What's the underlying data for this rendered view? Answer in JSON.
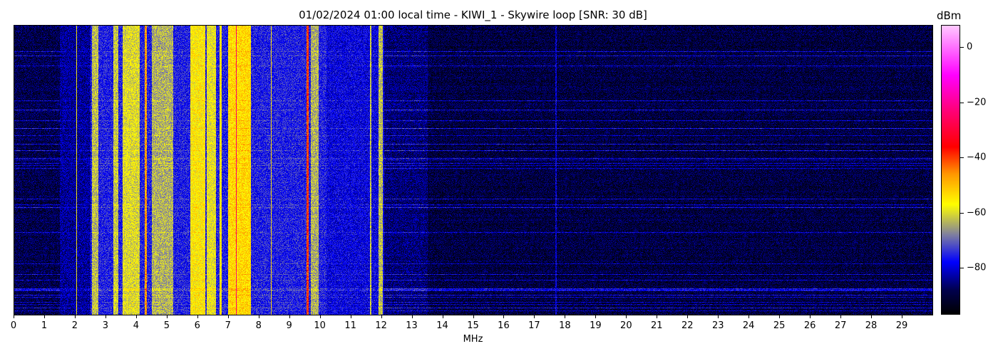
{
  "chart_data": {
    "type": "heatmap",
    "title": "01/02/2024 01:00 local time - KIWI_1 - Skywire loop [SNR: 30 dB]",
    "xlabel": "MHz",
    "ylabel": "",
    "xlim": [
      0,
      30
    ],
    "x_ticks": [
      0,
      1,
      2,
      3,
      4,
      5,
      6,
      7,
      8,
      9,
      10,
      11,
      12,
      13,
      14,
      15,
      16,
      17,
      18,
      19,
      20,
      21,
      22,
      23,
      24,
      25,
      26,
      27,
      28,
      29
    ],
    "colorbar": {
      "label": "dBm",
      "range": [
        -97,
        8
      ],
      "ticks": [
        0,
        -20,
        -40,
        -60,
        -80
      ],
      "colormap": [
        [
          -97,
          "#000000"
        ],
        [
          -88,
          "#000050"
        ],
        [
          -78,
          "#0000ff"
        ],
        [
          -68,
          "#8080a0"
        ],
        [
          -57,
          "#ffff00"
        ],
        [
          -46,
          "#ff9900"
        ],
        [
          -36,
          "#ff0000"
        ],
        [
          -22,
          "#ff0080"
        ],
        [
          -10,
          "#ff00ff"
        ],
        [
          8,
          "#ffc8ff"
        ]
      ]
    },
    "background_levels": [
      {
        "from": 0,
        "to": 1.5,
        "dbm": -89
      },
      {
        "from": 1.5,
        "to": 2.5,
        "dbm": -84
      },
      {
        "from": 2.5,
        "to": 10.2,
        "dbm": -76
      },
      {
        "from": 10.2,
        "to": 12.1,
        "dbm": -79
      },
      {
        "from": 12.1,
        "to": 13.5,
        "dbm": -86
      },
      {
        "from": 13.5,
        "to": 30,
        "dbm": -90
      }
    ],
    "signal_bands": [
      {
        "from": 2.03,
        "to": 2.07,
        "dbm": -58
      },
      {
        "from": 2.55,
        "to": 2.75,
        "dbm": -63
      },
      {
        "from": 3.25,
        "to": 3.4,
        "dbm": -62
      },
      {
        "from": 3.55,
        "to": 4.1,
        "dbm": -60
      },
      {
        "from": 4.28,
        "to": 4.35,
        "dbm": -47
      },
      {
        "from": 4.5,
        "to": 5.2,
        "dbm": -64
      },
      {
        "from": 5.75,
        "to": 6.25,
        "dbm": -56
      },
      {
        "from": 6.3,
        "to": 6.6,
        "dbm": -59
      },
      {
        "from": 6.72,
        "to": 6.78,
        "dbm": -55
      },
      {
        "from": 7.0,
        "to": 7.75,
        "dbm": -53
      },
      {
        "from": 7.25,
        "to": 7.28,
        "dbm": -25
      },
      {
        "from": 8.38,
        "to": 8.42,
        "dbm": -55
      },
      {
        "from": 9.55,
        "to": 9.62,
        "dbm": -40
      },
      {
        "from": 9.7,
        "to": 9.95,
        "dbm": -64
      },
      {
        "from": 11.63,
        "to": 11.68,
        "dbm": -62
      },
      {
        "from": 11.9,
        "to": 12.05,
        "dbm": -63
      },
      {
        "from": 17.68,
        "to": 17.72,
        "dbm": -80
      }
    ]
  }
}
